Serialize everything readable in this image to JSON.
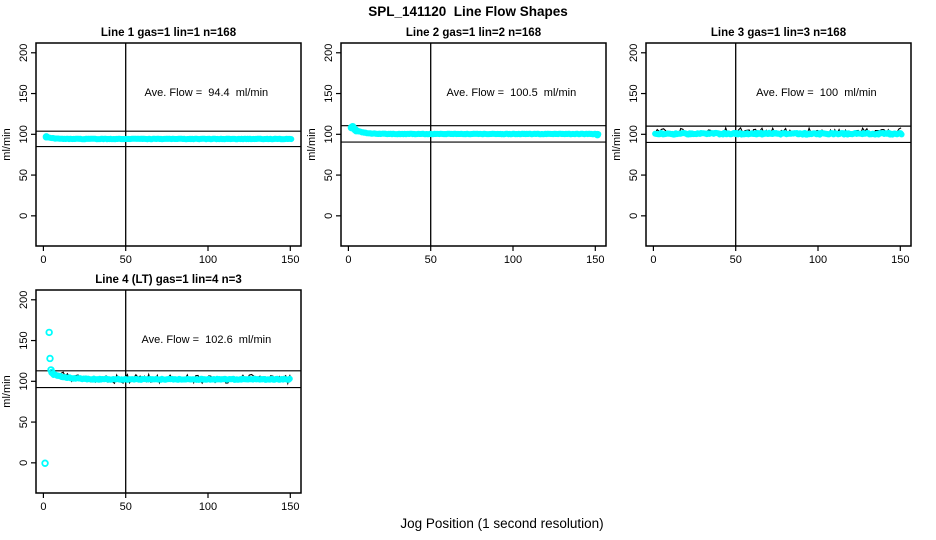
{
  "figure": {
    "title": "SPL_141120  Line Flow Shapes",
    "xlabel": "Jog Position (1 second resolution)",
    "background": "#FFFFFF",
    "marker_color": "#00FFFF",
    "line_color": "#000000"
  },
  "chart_data": [
    {
      "type": "scatter",
      "title": "Line 1 gas=1 lin=1 n=168",
      "annotation": "Ave. Flow =  94.4  ml/min",
      "ave_flow_ml_min": 94.4,
      "n": 168,
      "ylabel": "ml/min",
      "xlim": [
        -4.5,
        156.5
      ],
      "ylim": [
        -37,
        212
      ],
      "xticks": [
        0,
        50,
        100,
        150
      ],
      "yticks": [
        0,
        50,
        100,
        150,
        200
      ],
      "vline_x": 50,
      "ref_lines_y": [
        103.8,
        85.0
      ],
      "annotation_xy": [
        99,
        152
      ],
      "band": {
        "x_from": 1.5,
        "x_to": 151,
        "y_start": 97.2,
        "y_flat": 94.3,
        "settle_x": 12,
        "jitter": 0.3
      },
      "head_points": [
        [
          1.8,
          96.9
        ]
      ],
      "tail_points": [],
      "black_trace": null
    },
    {
      "type": "scatter",
      "title": "Line 2 gas=1 lin=2 n=168",
      "annotation": "Ave. Flow =  100.5  ml/min",
      "ave_flow_ml_min": 100.5,
      "n": 168,
      "ylabel": "ml/min",
      "xlim": [
        -4.5,
        156.5
      ],
      "ylim": [
        -37,
        212
      ],
      "xticks": [
        0,
        50,
        100,
        150
      ],
      "yticks": [
        0,
        50,
        100,
        150,
        200
      ],
      "vline_x": 50,
      "ref_lines_y": [
        110.6,
        90.5
      ],
      "annotation_xy": [
        99,
        152
      ],
      "band": {
        "x_from": 2,
        "x_to": 152,
        "y_start": 108.5,
        "y_flat": 100.4,
        "settle_x": 16,
        "jitter": 0.35
      },
      "head_points": [
        [
          1.8,
          108.2
        ],
        [
          2.6,
          109.4
        ],
        [
          3.2,
          107.6
        ],
        [
          4.0,
          105.8
        ],
        [
          4.8,
          104.4
        ]
      ],
      "tail_points": [
        [
          151.3,
          99.6
        ]
      ],
      "black_trace": null
    },
    {
      "type": "scatter",
      "title": "Line 3 gas=1 lin=3 n=168",
      "annotation": "Ave. Flow =  100  ml/min",
      "ave_flow_ml_min": 100,
      "n": 168,
      "ylabel": "ml/min",
      "xlim": [
        -4.5,
        156.5
      ],
      "ylim": [
        -37,
        212
      ],
      "xticks": [
        0,
        50,
        100,
        150
      ],
      "yticks": [
        0,
        50,
        100,
        150,
        200
      ],
      "vline_x": 50,
      "ref_lines_y": [
        110.0,
        90.0
      ],
      "annotation_xy": [
        99,
        152
      ],
      "band": {
        "x_from": 1,
        "x_to": 151,
        "y_start": 101.5,
        "y_flat": 100.7,
        "settle_x": 6,
        "jitter": 1.1
      },
      "head_points": [],
      "tail_points": [],
      "black_trace": {
        "amp_up": 6.0,
        "amp_down": 2.0
      }
    },
    {
      "type": "scatter",
      "title": "Line 4 (LT) gas=1 lin=4 n=3",
      "annotation": "Ave. Flow =  102.6  ml/min",
      "ave_flow_ml_min": 102.6,
      "n": 3,
      "ylabel": "ml/min",
      "xlim": [
        -4.5,
        156.5
      ],
      "ylim": [
        -37,
        212
      ],
      "xticks": [
        0,
        50,
        100,
        150
      ],
      "yticks": [
        0,
        50,
        100,
        150,
        200
      ],
      "vline_x": 50,
      "ref_lines_y": [
        112.9,
        92.3
      ],
      "annotation_xy": [
        99,
        152
      ],
      "band": {
        "x_from": 5.5,
        "x_to": 150,
        "y_start": 109.0,
        "y_flat": 102.4,
        "settle_x": 30,
        "jitter": 0.7
      },
      "head_points": [
        [
          1,
          -0.5
        ],
        [
          3.5,
          160
        ],
        [
          4,
          128
        ],
        [
          4.6,
          114
        ],
        [
          5.2,
          111
        ]
      ],
      "tail_points": [],
      "black_trace": {
        "amp_up": 5.0,
        "amp_down": 5.0
      }
    }
  ]
}
